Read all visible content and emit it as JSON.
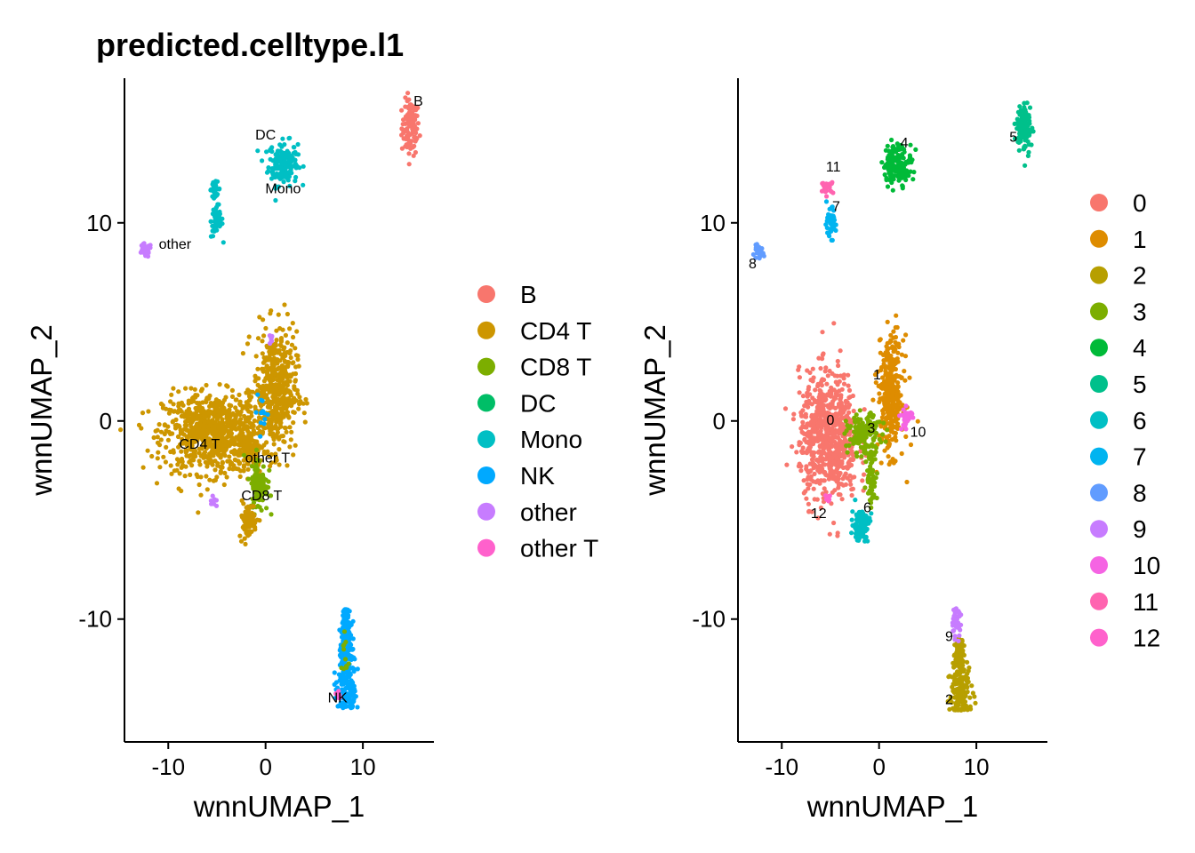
{
  "chart_data": [
    {
      "type": "scatter",
      "title": "predicted.celltype.l1",
      "xlabel": "wnnUMAP_1",
      "ylabel": "wnnUMAP_2",
      "xlim": [
        -14.5,
        17.3
      ],
      "ylim": [
        -16.2,
        17.3
      ],
      "xticks": [
        -10,
        0,
        10
      ],
      "yticks": [
        -10,
        0,
        10
      ],
      "xtick_labels": [
        "-10",
        "0",
        "10"
      ],
      "ytick_labels": [
        "-10",
        "0",
        "10"
      ],
      "grid": false,
      "legend_position": "right",
      "legend": [
        {
          "name": "B",
          "color": "#F8766D"
        },
        {
          "name": "CD4 T",
          "color": "#CD9600"
        },
        {
          "name": "CD8 T",
          "color": "#7CAE00"
        },
        {
          "name": "DC",
          "color": "#00BE67"
        },
        {
          "name": "Mono",
          "color": "#00BFC4"
        },
        {
          "name": "NK",
          "color": "#00A9FF"
        },
        {
          "name": "other",
          "color": "#C77CFF"
        },
        {
          "name": "other T",
          "color": "#FF61CC"
        }
      ],
      "clusters": [
        {
          "name": "B",
          "color": "#F8766D",
          "shape": "ellipse",
          "cx": 14.9,
          "cy": 14.8,
          "rx": 0.9,
          "ry": 1.4,
          "n": 110
        },
        {
          "name": "Mono",
          "color": "#00BFC4",
          "shape": "ellipse",
          "cx": 1.8,
          "cy": 13.0,
          "rx": 1.5,
          "ry": 1.1,
          "n": 170
        },
        {
          "name": "Mono",
          "color": "#00BFC4",
          "shape": "ellipse",
          "cx": -5.2,
          "cy": 11.7,
          "rx": 0.55,
          "ry": 0.35,
          "n": 30
        },
        {
          "name": "Mono",
          "color": "#00BFC4",
          "shape": "ellipse",
          "cx": -5.0,
          "cy": 10.1,
          "rx": 0.6,
          "ry": 0.85,
          "n": 60
        },
        {
          "name": "other",
          "color": "#C77CFF",
          "shape": "ellipse",
          "cx": -12.4,
          "cy": 8.6,
          "rx": 0.7,
          "ry": 0.35,
          "n": 30
        },
        {
          "name": "CD4 T",
          "color": "#CD9600",
          "shape": "ellipse",
          "cx": -5.5,
          "cy": -0.6,
          "rx": 5.0,
          "ry": 2.0,
          "n": 800
        },
        {
          "name": "CD4 T",
          "color": "#CD9600",
          "shape": "ellipse",
          "cx": 1.0,
          "cy": 1.5,
          "rx": 2.2,
          "ry": 3.0,
          "n": 480
        },
        {
          "name": "CD4 T",
          "color": "#CD9600",
          "shape": "ellipse",
          "cx": -1.5,
          "cy": -1.5,
          "rx": 1.3,
          "ry": 1.2,
          "n": 90
        },
        {
          "name": "CD8 T",
          "color": "#7CAE00",
          "shape": "ellipse",
          "cx": -0.7,
          "cy": -3.2,
          "rx": 0.9,
          "ry": 1.4,
          "n": 110
        },
        {
          "name": "CD4 T",
          "color": "#CD9600",
          "shape": "ellipse",
          "cx": -1.8,
          "cy": -5.0,
          "rx": 0.9,
          "ry": 0.9,
          "n": 80
        },
        {
          "name": "NK",
          "color": "#00A9FF",
          "shape": "wedge",
          "x0": 8.3,
          "ytop": -9.5,
          "ybot": -14.5,
          "w0": 0.35,
          "w1": 1.3,
          "n": 340
        },
        {
          "name": "CD8 T",
          "color": "#7CAE00",
          "shape": "ellipse",
          "cx": 8.2,
          "cy": -11.8,
          "rx": 0.4,
          "ry": 1.5,
          "n": 12
        },
        {
          "name": "other T",
          "color": "#FF61CC",
          "shape": "ellipse",
          "cx": 7.5,
          "cy": -13.8,
          "rx": 0.4,
          "ry": 0.3,
          "n": 6
        },
        {
          "name": "other",
          "color": "#C77CFF",
          "shape": "ellipse",
          "cx": 0.5,
          "cy": 4.2,
          "rx": 0.3,
          "ry": 0.25,
          "n": 8
        },
        {
          "name": "other",
          "color": "#C77CFF",
          "shape": "ellipse",
          "cx": -5.3,
          "cy": -4.1,
          "rx": 0.4,
          "ry": 0.3,
          "n": 8
        },
        {
          "name": "NK",
          "color": "#00A9FF",
          "shape": "ellipse",
          "cx": -0.3,
          "cy": 0.5,
          "rx": 0.6,
          "ry": 1.2,
          "n": 12
        }
      ],
      "annotations": [
        {
          "text": "B",
          "x": 15.7,
          "y": 15.9
        },
        {
          "text": "DC",
          "x": 0.0,
          "y": 14.2
        },
        {
          "text": "Mono",
          "x": 1.8,
          "y": 11.5
        },
        {
          "text": "other",
          "x": -9.3,
          "y": 8.7
        },
        {
          "text": "CD4 T",
          "x": -6.8,
          "y": -1.4
        },
        {
          "text": "other T",
          "x": 0.2,
          "y": -2.1
        },
        {
          "text": "CD8 T",
          "x": -0.4,
          "y": -4.0
        },
        {
          "text": "NK",
          "x": 7.4,
          "y": -14.2
        }
      ]
    },
    {
      "type": "scatter",
      "title": "",
      "xlabel": "wnnUMAP_1",
      "ylabel": "wnnUMAP_2",
      "xlim": [
        -14.5,
        17.3
      ],
      "ylim": [
        -16.2,
        17.3
      ],
      "xticks": [
        -10,
        0,
        10
      ],
      "yticks": [
        -10,
        0,
        10
      ],
      "xtick_labels": [
        "-10",
        "0",
        "10"
      ],
      "ytick_labels": [
        "-10",
        "0",
        "10"
      ],
      "grid": false,
      "legend_position": "right",
      "legend": [
        {
          "name": "0",
          "color": "#F8766D"
        },
        {
          "name": "1",
          "color": "#DE8C00"
        },
        {
          "name": "2",
          "color": "#B79F00"
        },
        {
          "name": "3",
          "color": "#7CAE00"
        },
        {
          "name": "4",
          "color": "#00BA38"
        },
        {
          "name": "5",
          "color": "#00C08B"
        },
        {
          "name": "6",
          "color": "#00BFC4"
        },
        {
          "name": "7",
          "color": "#00B4F0"
        },
        {
          "name": "8",
          "color": "#619CFF"
        },
        {
          "name": "9",
          "color": "#C77CFF"
        },
        {
          "name": "10",
          "color": "#F564E3"
        },
        {
          "name": "11",
          "color": "#FF64B0"
        },
        {
          "name": "12",
          "color": "#FF61CC"
        }
      ],
      "clusters": [
        {
          "name": "0",
          "color": "#F8766D",
          "shape": "ellipse",
          "cx": -5.2,
          "cy": -0.8,
          "rx": 3.0,
          "ry": 3.2,
          "n": 720
        },
        {
          "name": "1",
          "color": "#DE8C00",
          "shape": "ellipse",
          "cx": 1.2,
          "cy": 1.3,
          "rx": 1.3,
          "ry": 2.9,
          "n": 340
        },
        {
          "name": "2",
          "color": "#B79F00",
          "shape": "wedge",
          "x0": 8.3,
          "ytop": -11.0,
          "ybot": -14.6,
          "w0": 0.4,
          "w1": 1.4,
          "n": 240
        },
        {
          "name": "3",
          "color": "#7CAE00",
          "shape": "ellipse",
          "cx": -1.5,
          "cy": -0.7,
          "rx": 1.8,
          "ry": 1.0,
          "n": 150
        },
        {
          "name": "3",
          "color": "#7CAE00",
          "shape": "ellipse",
          "cx": -0.8,
          "cy": -2.9,
          "rx": 0.5,
          "ry": 1.4,
          "n": 60
        },
        {
          "name": "4",
          "color": "#00BA38",
          "shape": "ellipse",
          "cx": 1.9,
          "cy": 13.0,
          "rx": 1.5,
          "ry": 1.0,
          "n": 150
        },
        {
          "name": "5",
          "color": "#00C08B",
          "shape": "ellipse",
          "cx": 14.9,
          "cy": 14.8,
          "rx": 0.8,
          "ry": 1.3,
          "n": 110
        },
        {
          "name": "6",
          "color": "#00BFC4",
          "shape": "ellipse",
          "cx": -1.9,
          "cy": -5.2,
          "rx": 0.9,
          "ry": 0.8,
          "n": 110
        },
        {
          "name": "7",
          "color": "#00B4F0",
          "shape": "ellipse",
          "cx": -5.0,
          "cy": 10.0,
          "rx": 0.55,
          "ry": 0.75,
          "n": 55
        },
        {
          "name": "8",
          "color": "#619CFF",
          "shape": "ellipse",
          "cx": -12.4,
          "cy": 8.5,
          "rx": 0.55,
          "ry": 0.3,
          "n": 28
        },
        {
          "name": "9",
          "color": "#C77CFF",
          "shape": "ellipse",
          "cx": 7.9,
          "cy": -10.2,
          "rx": 0.5,
          "ry": 0.7,
          "n": 40
        },
        {
          "name": "10",
          "color": "#F564E3",
          "shape": "ellipse",
          "cx": 2.8,
          "cy": 0.2,
          "rx": 0.65,
          "ry": 0.5,
          "n": 40
        },
        {
          "name": "11",
          "color": "#FF64B0",
          "shape": "ellipse",
          "cx": -5.3,
          "cy": 11.8,
          "rx": 0.6,
          "ry": 0.28,
          "n": 28
        },
        {
          "name": "12",
          "color": "#FF61CC",
          "shape": "ellipse",
          "cx": -5.2,
          "cy": -3.9,
          "rx": 0.25,
          "ry": 0.35,
          "n": 8
        }
      ],
      "annotations": [
        {
          "text": "0",
          "x": -5.0,
          "y": -0.2
        },
        {
          "text": "1",
          "x": -0.2,
          "y": 2.1
        },
        {
          "text": "2",
          "x": 7.2,
          "y": -14.3
        },
        {
          "text": "3",
          "x": -0.8,
          "y": -0.6
        },
        {
          "text": "4",
          "x": 2.6,
          "y": 13.8
        },
        {
          "text": "5",
          "x": 13.8,
          "y": 14.1
        },
        {
          "text": "6",
          "x": -1.2,
          "y": -4.6
        },
        {
          "text": "7",
          "x": -4.4,
          "y": 10.6
        },
        {
          "text": "8",
          "x": -13.0,
          "y": 7.7
        },
        {
          "text": "9",
          "x": 7.2,
          "y": -11.1
        },
        {
          "text": "10",
          "x": 4.0,
          "y": -0.8
        },
        {
          "text": "11",
          "x": -4.7,
          "y": 12.6
        },
        {
          "text": "12",
          "x": -6.2,
          "y": -4.9
        }
      ]
    }
  ]
}
